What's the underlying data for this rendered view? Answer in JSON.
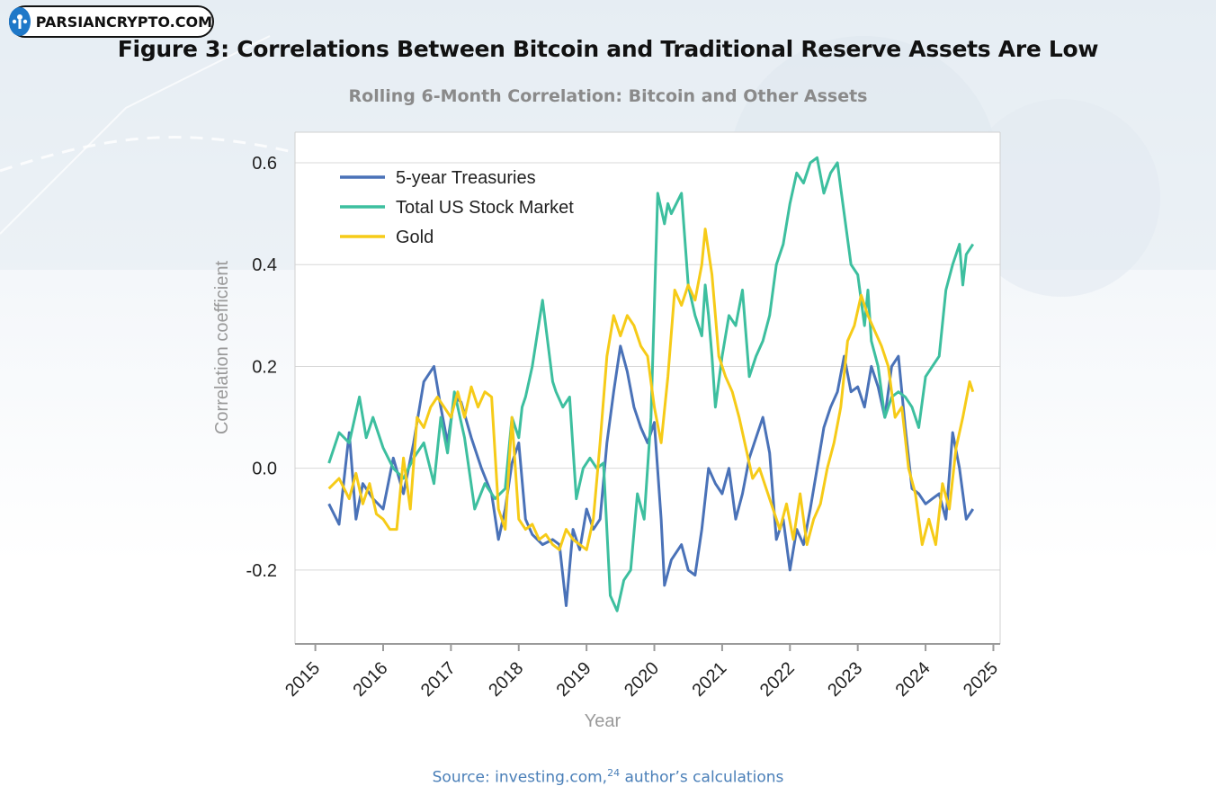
{
  "logo": {
    "text": "PARSIANCRYPTO.COM"
  },
  "figure_title": "Figure 3: Correlations Between Bitcoin and Traditional Reserve Assets Are Low",
  "source": {
    "text": "Source: investing.com,",
    "superscript": "24",
    "suffix": " author’s calculations"
  },
  "colors": {
    "treasuries": "#4a72b8",
    "stocks": "#3dbf9f",
    "gold": "#f6cb18",
    "grid": "#d8d8d8",
    "axis": "#9a9a9a"
  },
  "chart_data": {
    "type": "line",
    "title": "Rolling 6-Month Correlation: Bitcoin and Other Assets",
    "xlabel": "Year",
    "ylabel": "Correlation coefficient",
    "xlim": [
      2014.7,
      2025.1
    ],
    "ylim": [
      -0.345,
      0.66
    ],
    "xticks": [
      2015,
      2016,
      2017,
      2018,
      2019,
      2020,
      2021,
      2022,
      2023,
      2024,
      2025
    ],
    "xtick_labels": [
      "2015",
      "2016",
      "2017",
      "2018",
      "2019",
      "2020",
      "2021",
      "2022",
      "2023",
      "2024",
      "2025"
    ],
    "yticks": [
      -0.2,
      0.0,
      0.2,
      0.4,
      0.6
    ],
    "ytick_labels": [
      "-0.2",
      "0.0",
      "0.2",
      "0.4",
      "0.6"
    ],
    "grid": true,
    "legend_position": "top-left",
    "series": [
      {
        "name": "5-year Treasuries",
        "color": "#4a72b8",
        "x": [
          2015.2,
          2015.35,
          2015.5,
          2015.6,
          2015.7,
          2015.85,
          2016.0,
          2016.15,
          2016.3,
          2016.45,
          2016.6,
          2016.75,
          2016.85,
          2016.95,
          2017.05,
          2017.15,
          2017.3,
          2017.45,
          2017.6,
          2017.7,
          2017.8,
          2017.9,
          2018.0,
          2018.1,
          2018.2,
          2018.35,
          2018.5,
          2018.6,
          2018.7,
          2018.8,
          2018.9,
          2019.0,
          2019.1,
          2019.2,
          2019.3,
          2019.4,
          2019.5,
          2019.6,
          2019.7,
          2019.8,
          2019.9,
          2020.0,
          2020.1,
          2020.15,
          2020.25,
          2020.4,
          2020.5,
          2020.6,
          2020.7,
          2020.8,
          2020.9,
          2021.0,
          2021.1,
          2021.2,
          2021.3,
          2021.4,
          2021.5,
          2021.6,
          2021.7,
          2021.8,
          2021.9,
          2022.0,
          2022.1,
          2022.2,
          2022.3,
          2022.4,
          2022.5,
          2022.6,
          2022.7,
          2022.8,
          2022.9,
          2023.0,
          2023.1,
          2023.2,
          2023.3,
          2023.4,
          2023.5,
          2023.6,
          2023.7,
          2023.8,
          2023.9,
          2024.0,
          2024.1,
          2024.2,
          2024.3,
          2024.4,
          2024.5,
          2024.6,
          2024.7
        ],
        "values": [
          -0.07,
          -0.11,
          0.07,
          -0.1,
          -0.03,
          -0.06,
          -0.08,
          0.02,
          -0.05,
          0.05,
          0.17,
          0.2,
          0.12,
          0.05,
          0.14,
          0.13,
          0.06,
          0.0,
          -0.05,
          -0.14,
          -0.08,
          0.01,
          0.05,
          -0.1,
          -0.13,
          -0.15,
          -0.14,
          -0.15,
          -0.27,
          -0.12,
          -0.16,
          -0.08,
          -0.12,
          -0.1,
          0.05,
          0.15,
          0.24,
          0.19,
          0.12,
          0.08,
          0.05,
          0.09,
          -0.1,
          -0.23,
          -0.18,
          -0.15,
          -0.2,
          -0.21,
          -0.12,
          0.0,
          -0.03,
          -0.05,
          0.0,
          -0.1,
          -0.05,
          0.02,
          0.06,
          0.1,
          0.03,
          -0.14,
          -0.1,
          -0.2,
          -0.12,
          -0.15,
          -0.08,
          0.0,
          0.08,
          0.12,
          0.15,
          0.22,
          0.15,
          0.16,
          0.12,
          0.2,
          0.16,
          0.1,
          0.2,
          0.22,
          0.08,
          -0.04,
          -0.05,
          -0.07,
          -0.06,
          -0.05,
          -0.1,
          0.07,
          0.0,
          -0.1,
          -0.08
        ]
      },
      {
        "name": "Total US Stock Market",
        "color": "#3dbf9f",
        "x": [
          2015.2,
          2015.35,
          2015.5,
          2015.65,
          2015.75,
          2015.85,
          2016.0,
          2016.15,
          2016.3,
          2016.45,
          2016.6,
          2016.75,
          2016.85,
          2016.95,
          2017.05,
          2017.2,
          2017.35,
          2017.5,
          2017.65,
          2017.8,
          2017.9,
          2018.0,
          2018.05,
          2018.1,
          2018.2,
          2018.35,
          2018.5,
          2018.55,
          2018.65,
          2018.75,
          2018.85,
          2018.95,
          2019.05,
          2019.15,
          2019.25,
          2019.35,
          2019.45,
          2019.55,
          2019.65,
          2019.75,
          2019.85,
          2019.95,
          2020.05,
          2020.15,
          2020.2,
          2020.25,
          2020.4,
          2020.5,
          2020.6,
          2020.7,
          2020.75,
          2020.8,
          2020.85,
          2020.9,
          2021.0,
          2021.1,
          2021.2,
          2021.3,
          2021.4,
          2021.5,
          2021.6,
          2021.7,
          2021.8,
          2021.9,
          2022.0,
          2022.1,
          2022.2,
          2022.3,
          2022.4,
          2022.5,
          2022.6,
          2022.7,
          2022.75,
          2022.8,
          2022.9,
          2023.0,
          2023.1,
          2023.15,
          2023.2,
          2023.3,
          2023.4,
          2023.5,
          2023.6,
          2023.7,
          2023.8,
          2023.9,
          2024.0,
          2024.1,
          2024.2,
          2024.3,
          2024.4,
          2024.5,
          2024.55,
          2024.6,
          2024.7
        ],
        "values": [
          0.01,
          0.07,
          0.05,
          0.14,
          0.06,
          0.1,
          0.04,
          0.0,
          -0.02,
          0.02,
          0.05,
          -0.03,
          0.1,
          0.03,
          0.15,
          0.06,
          -0.08,
          -0.03,
          -0.06,
          -0.04,
          0.1,
          0.06,
          0.12,
          0.14,
          0.2,
          0.33,
          0.17,
          0.15,
          0.12,
          0.14,
          -0.06,
          0.0,
          0.02,
          0.0,
          0.01,
          -0.25,
          -0.28,
          -0.22,
          -0.2,
          -0.05,
          -0.1,
          0.1,
          0.54,
          0.48,
          0.52,
          0.5,
          0.54,
          0.36,
          0.3,
          0.26,
          0.36,
          0.3,
          0.22,
          0.12,
          0.22,
          0.3,
          0.28,
          0.35,
          0.18,
          0.22,
          0.25,
          0.3,
          0.4,
          0.44,
          0.52,
          0.58,
          0.56,
          0.6,
          0.61,
          0.54,
          0.58,
          0.6,
          0.55,
          0.5,
          0.4,
          0.38,
          0.28,
          0.35,
          0.25,
          0.2,
          0.1,
          0.14,
          0.15,
          0.14,
          0.12,
          0.08,
          0.18,
          0.2,
          0.22,
          0.35,
          0.4,
          0.44,
          0.36,
          0.42,
          0.44
        ]
      },
      {
        "name": "Gold",
        "color": "#f6cb18",
        "x": [
          2015.2,
          2015.35,
          2015.5,
          2015.6,
          2015.7,
          2015.8,
          2015.9,
          2016.0,
          2016.1,
          2016.2,
          2016.3,
          2016.4,
          2016.5,
          2016.6,
          2016.7,
          2016.8,
          2016.9,
          2017.0,
          2017.1,
          2017.2,
          2017.3,
          2017.4,
          2017.5,
          2017.6,
          2017.7,
          2017.8,
          2017.9,
          2018.0,
          2018.1,
          2018.2,
          2018.3,
          2018.4,
          2018.5,
          2018.6,
          2018.7,
          2018.8,
          2018.9,
          2019.0,
          2019.1,
          2019.2,
          2019.3,
          2019.4,
          2019.5,
          2019.6,
          2019.7,
          2019.8,
          2019.9,
          2020.0,
          2020.1,
          2020.2,
          2020.3,
          2020.4,
          2020.5,
          2020.6,
          2020.7,
          2020.75,
          2020.85,
          2020.95,
          2021.05,
          2021.15,
          2021.25,
          2021.35,
          2021.45,
          2021.55,
          2021.65,
          2021.75,
          2021.85,
          2021.95,
          2022.05,
          2022.15,
          2022.25,
          2022.35,
          2022.45,
          2022.55,
          2022.65,
          2022.75,
          2022.85,
          2022.95,
          2023.05,
          2023.15,
          2023.25,
          2023.35,
          2023.45,
          2023.55,
          2023.65,
          2023.75,
          2023.85,
          2023.95,
          2024.05,
          2024.15,
          2024.25,
          2024.35,
          2024.45,
          2024.55,
          2024.65,
          2024.7
        ],
        "values": [
          -0.04,
          -0.02,
          -0.06,
          -0.01,
          -0.07,
          -0.03,
          -0.09,
          -0.1,
          -0.12,
          -0.12,
          0.02,
          -0.08,
          0.1,
          0.08,
          0.12,
          0.14,
          0.12,
          0.1,
          0.15,
          0.1,
          0.16,
          0.12,
          0.15,
          0.14,
          -0.08,
          -0.12,
          0.1,
          -0.1,
          -0.12,
          -0.11,
          -0.14,
          -0.13,
          -0.15,
          -0.16,
          -0.12,
          -0.14,
          -0.15,
          -0.16,
          -0.1,
          0.05,
          0.22,
          0.3,
          0.26,
          0.3,
          0.28,
          0.24,
          0.22,
          0.12,
          0.05,
          0.18,
          0.35,
          0.32,
          0.36,
          0.33,
          0.4,
          0.47,
          0.38,
          0.22,
          0.18,
          0.15,
          0.1,
          0.04,
          -0.02,
          0.0,
          -0.04,
          -0.08,
          -0.12,
          -0.07,
          -0.14,
          -0.05,
          -0.15,
          -0.1,
          -0.07,
          0.0,
          0.05,
          0.12,
          0.25,
          0.28,
          0.34,
          0.3,
          0.27,
          0.24,
          0.2,
          0.1,
          0.12,
          0.0,
          -0.05,
          -0.15,
          -0.1,
          -0.15,
          -0.03,
          -0.08,
          0.04,
          0.1,
          0.17,
          0.15
        ]
      }
    ]
  }
}
